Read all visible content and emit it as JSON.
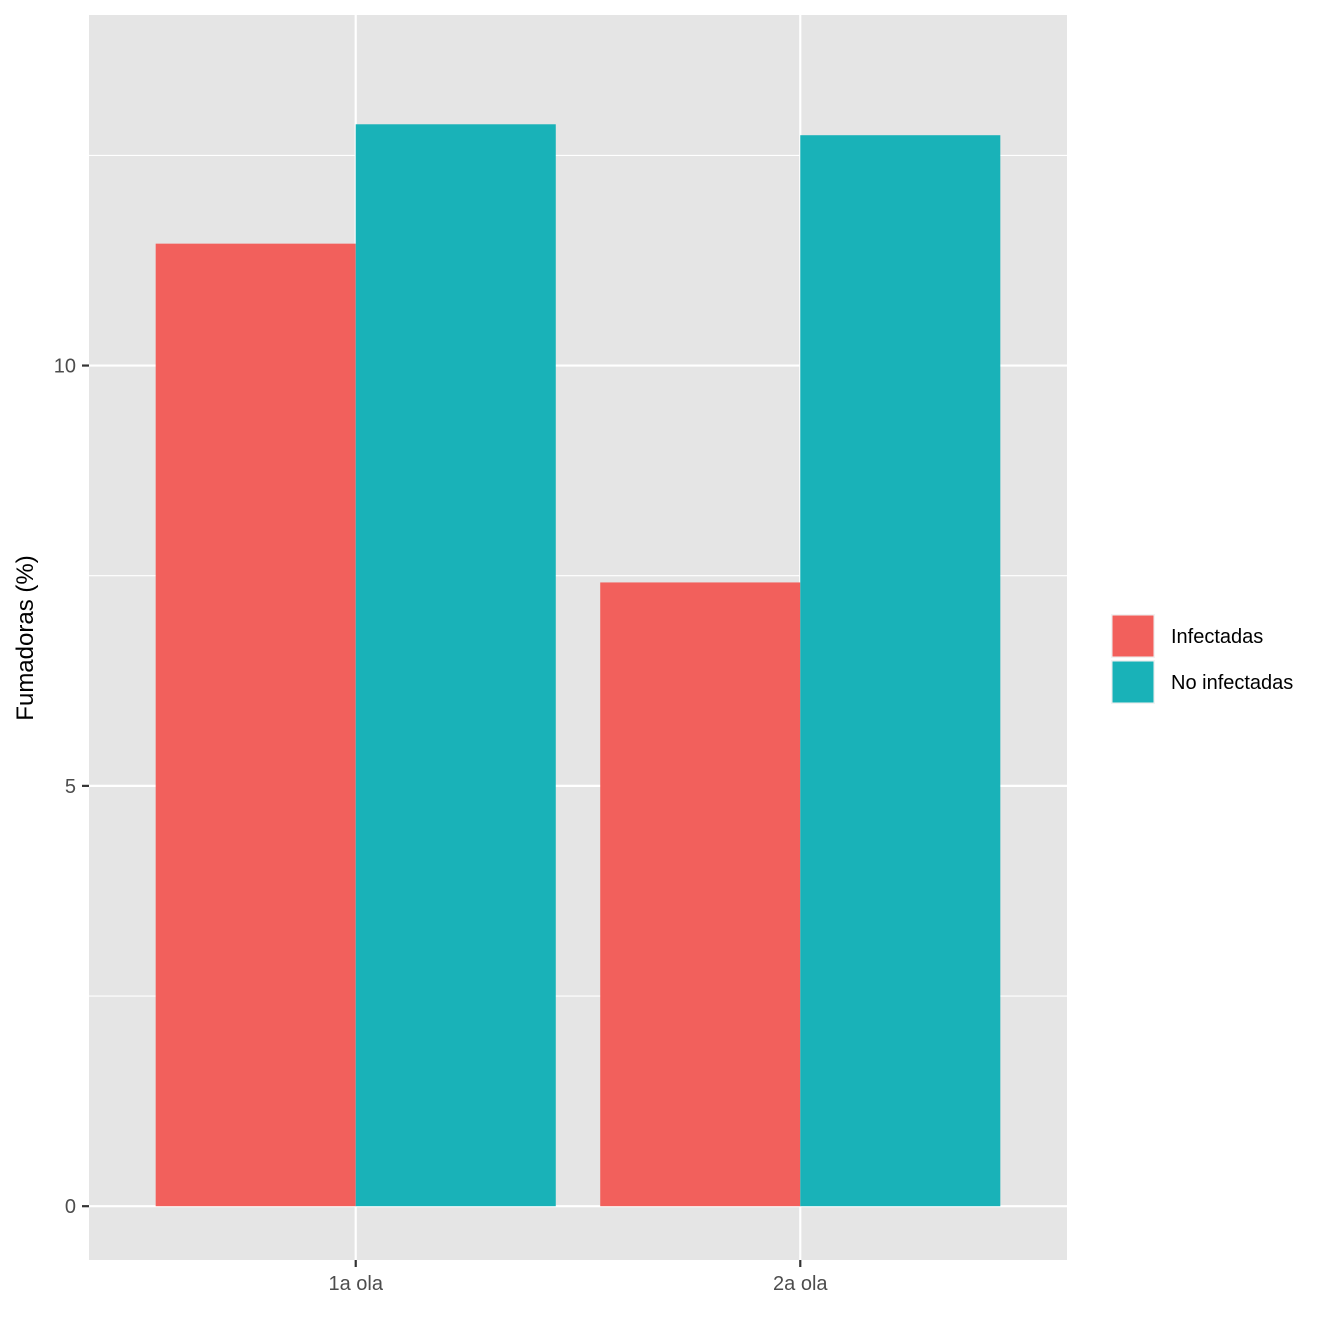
{
  "chart_data": {
    "type": "bar",
    "categories": [
      "1a ola",
      "2a ola"
    ],
    "series": [
      {
        "name": "Infectadas",
        "values": [
          11.45,
          7.42
        ],
        "color": "#F2605C"
      },
      {
        "name": "No infectadas",
        "values": [
          12.87,
          12.74
        ],
        "color": "#19B2B8"
      }
    ],
    "xlabel": "",
    "ylabel": "Fumadoras (%)",
    "ylim": [
      -0.64,
      14.17
    ],
    "yticks": [
      0,
      5,
      10
    ],
    "ytick_labels": [
      "0",
      "5",
      "10"
    ],
    "y_minor_ticks": [
      2.5,
      7.5,
      12.5
    ],
    "grid": true,
    "legend_position": "right",
    "panel_background": "#E5E5E5",
    "grid_color": "#FFFFFF"
  }
}
